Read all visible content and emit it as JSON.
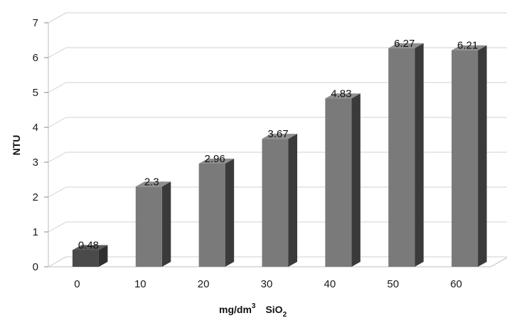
{
  "chart_data": {
    "type": "bar",
    "categories": [
      "0",
      "10",
      "20",
      "30",
      "40",
      "50",
      "60"
    ],
    "values": [
      0.48,
      2.3,
      2.96,
      3.67,
      4.83,
      6.27,
      6.21
    ],
    "data_labels": [
      "0.48",
      "2.3",
      "2.96",
      "3.67",
      "4.83",
      "6.27",
      "6.21"
    ],
    "ylabel": "NTU",
    "xlabel": "mg/dm",
    "xlabel_sup": "3",
    "xlabel_compound": "SiO",
    "xlabel_sub": "2",
    "yticks": [
      "0",
      "1",
      "2",
      "3",
      "4",
      "5",
      "6",
      "7"
    ],
    "ylim": [
      0,
      7
    ],
    "grid": true,
    "three_d": true,
    "colors": {
      "first_bar_front": "#4a4a4a",
      "first_bar_side": "#2f2f2f",
      "first_bar_top": "#5a5a5a",
      "bar_front": "#7a7a7a",
      "bar_side": "#3a3a3a",
      "bar_top": "#8e8e8e",
      "grid": "#d2d2d2",
      "wall": "#bdbdbd"
    }
  }
}
